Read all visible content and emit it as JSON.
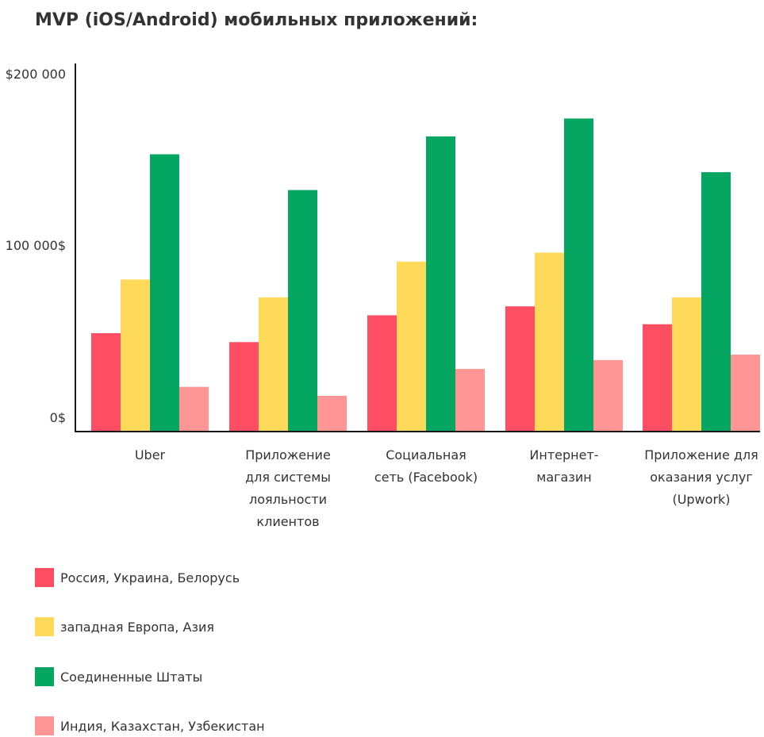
{
  "chart_data": {
    "type": "bar",
    "title": "MVP (iOS/Android) мобильных приложений:",
    "xlabel": "",
    "ylabel": "",
    "ylim": [
      0,
      200000
    ],
    "y_ticks": [
      {
        "value": 0,
        "label": "0$"
      },
      {
        "value": 100000,
        "label": "100 000$"
      },
      {
        "value": 200000,
        "label": "$200 000"
      }
    ],
    "categories": [
      [
        "Uber"
      ],
      [
        "Приложение",
        "для системы",
        "лояльности",
        "клиентов"
      ],
      [
        "Социальная",
        "сеть (Facebook)"
      ],
      [
        "Интернет-",
        "магазин"
      ],
      [
        "Приложение для",
        "оказания услуг",
        "(Upwork)"
      ]
    ],
    "series": [
      {
        "name": "Россия, Украина, Белорусь",
        "color": "#ff4d63",
        "values": [
          55000,
          50000,
          65000,
          70000,
          60000
        ]
      },
      {
        "name": "западная Европа, Азия",
        "color": "#ffd95a",
        "values": [
          85000,
          75000,
          95000,
          100000,
          75000
        ]
      },
      {
        "name": "Соединенные Штаты",
        "color": "#05a661",
        "values": [
          155000,
          135000,
          165000,
          175000,
          145000
        ]
      },
      {
        "name": "Индия, Казахстан, Узбекистан",
        "color": "#ff9595",
        "values": [
          25000,
          20000,
          35000,
          40000,
          43000
        ]
      }
    ],
    "grid": false,
    "legend_position": "bottom-left"
  },
  "colors": {
    "axis": "#1a1a1a",
    "text": "#333333"
  }
}
